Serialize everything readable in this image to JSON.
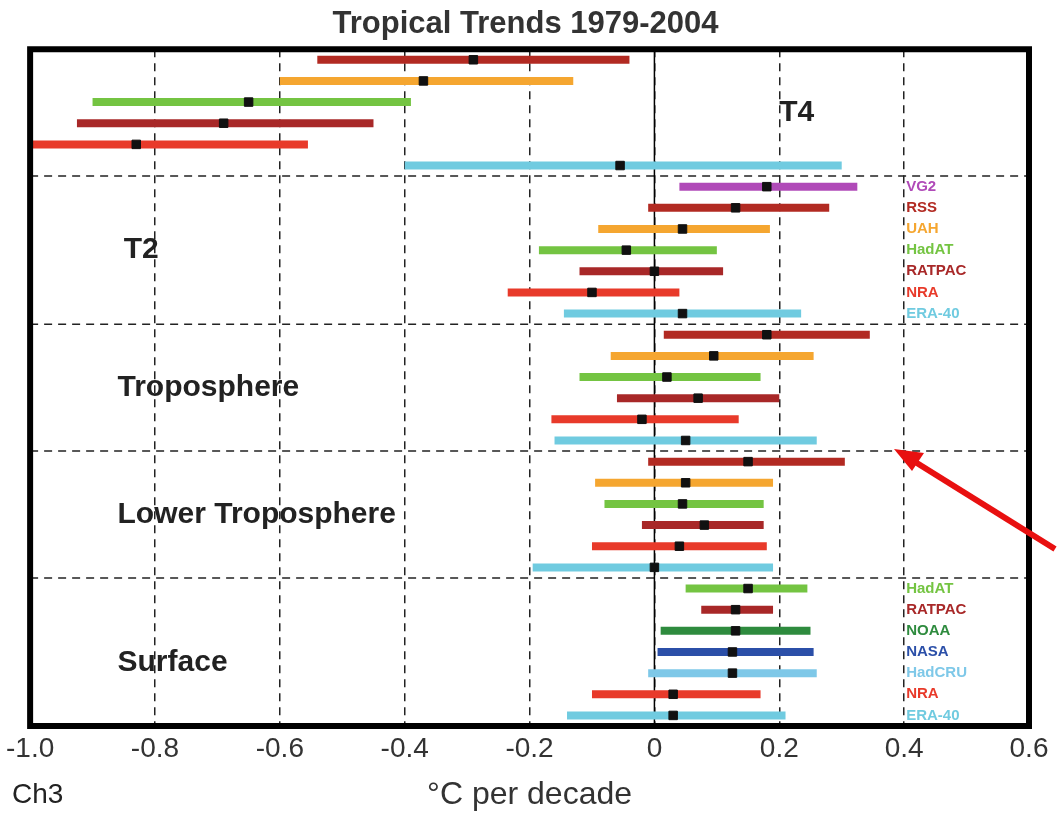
{
  "chart_data": {
    "type": "scatter",
    "orientation": "horizontal",
    "title": "Tropical Trends 1979-2004",
    "xlabel": "°C per decade",
    "categories": [
      null,
      null,
      null,
      null,
      null,
      null,
      "VG2",
      "RSS",
      "UAH",
      "HadAT",
      "RATPAC",
      "NRA",
      "ERA-40",
      null,
      null,
      null,
      null,
      null,
      null,
      null,
      null,
      null,
      null,
      null,
      null,
      "HadAT",
      "RATPAC",
      "NOAA",
      "NASA",
      "HadCRU",
      "NRA",
      "ERA-40"
    ],
    "series": [
      {
        "color": "#111111",
        "values": [
          -0.29,
          -0.37,
          -0.65,
          -0.69,
          -0.83,
          -0.055,
          0.18,
          0.13,
          0.045,
          -0.045,
          0.0,
          -0.1,
          0.045,
          0.18,
          0.095,
          0.02,
          0.07,
          -0.02,
          0.05,
          0.15,
          0.05,
          0.045,
          0.08,
          0.04,
          0.0,
          0.15,
          0.13,
          0.13,
          0.125,
          0.125,
          0.03,
          0.03
        ],
        "errors": [
          [
            -0.54,
            -0.04
          ],
          [
            -0.6,
            -0.13
          ],
          [
            -0.9,
            -0.39
          ],
          [
            -0.925,
            -0.45
          ],
          [
            -1.0,
            -0.555
          ],
          [
            -0.4,
            0.3
          ],
          [
            0.04,
            0.325
          ],
          [
            -0.01,
            0.28
          ],
          [
            -0.09,
            0.185
          ],
          [
            -0.185,
            0.1
          ],
          [
            -0.12,
            0.11
          ],
          [
            -0.235,
            0.04
          ],
          [
            -0.145,
            0.235
          ],
          [
            0.015,
            0.345
          ],
          [
            -0.07,
            0.255
          ],
          [
            -0.12,
            0.17
          ],
          [
            -0.06,
            0.2
          ],
          [
            -0.165,
            0.135
          ],
          [
            -0.16,
            0.26
          ],
          [
            -0.01,
            0.305
          ],
          [
            -0.095,
            0.19
          ],
          [
            -0.08,
            0.175
          ],
          [
            -0.02,
            0.175
          ],
          [
            -0.1,
            0.18
          ],
          [
            -0.195,
            0.19
          ],
          [
            0.05,
            0.245
          ],
          [
            0.075,
            0.19
          ],
          [
            0.01,
            0.25
          ],
          [
            0.005,
            0.255
          ],
          [
            -0.01,
            0.26
          ],
          [
            -0.1,
            0.17
          ],
          [
            -0.14,
            0.21
          ]
        ]
      }
    ],
    "colors": [
      "#b22a22",
      "#f5a630",
      "#74c442",
      "#a82828",
      "#e83a2a",
      "#70cbe0",
      "#b04ab8",
      "#b22a22",
      "#f5a630",
      "#74c442",
      "#a82828",
      "#e83a2a",
      "#70cbe0",
      "#b22a22",
      "#f5a630",
      "#74c442",
      "#a82828",
      "#e83a2a",
      "#70cbe0",
      "#b22a22",
      "#f5a630",
      "#74c442",
      "#a82828",
      "#e83a2a",
      "#70cbe0",
      "#74c442",
      "#a82828",
      "#2e8b3e",
      "#2b4fa8",
      "#7ec8e8",
      "#e83a2a",
      "#70cbe0"
    ],
    "xlim": [
      -1.0,
      0.6
    ],
    "xticks": [
      {
        "value": -1.0,
        "label": "-1.0"
      },
      -0.8,
      -0.6,
      -0.4,
      -0.2,
      0,
      0.2,
      0.4,
      0.6
    ],
    "grid": "x",
    "marker": "square",
    "line_style": "dashed",
    "ref_lines": [
      {
        "axis": "x",
        "value": 0,
        "color": "#000000",
        "line_style": "solid"
      }
    ],
    "annotations": [
      "T4",
      "T2",
      "Troposphere",
      "Lower Troposphere",
      "Surface",
      "Ch3"
    ]
  }
}
